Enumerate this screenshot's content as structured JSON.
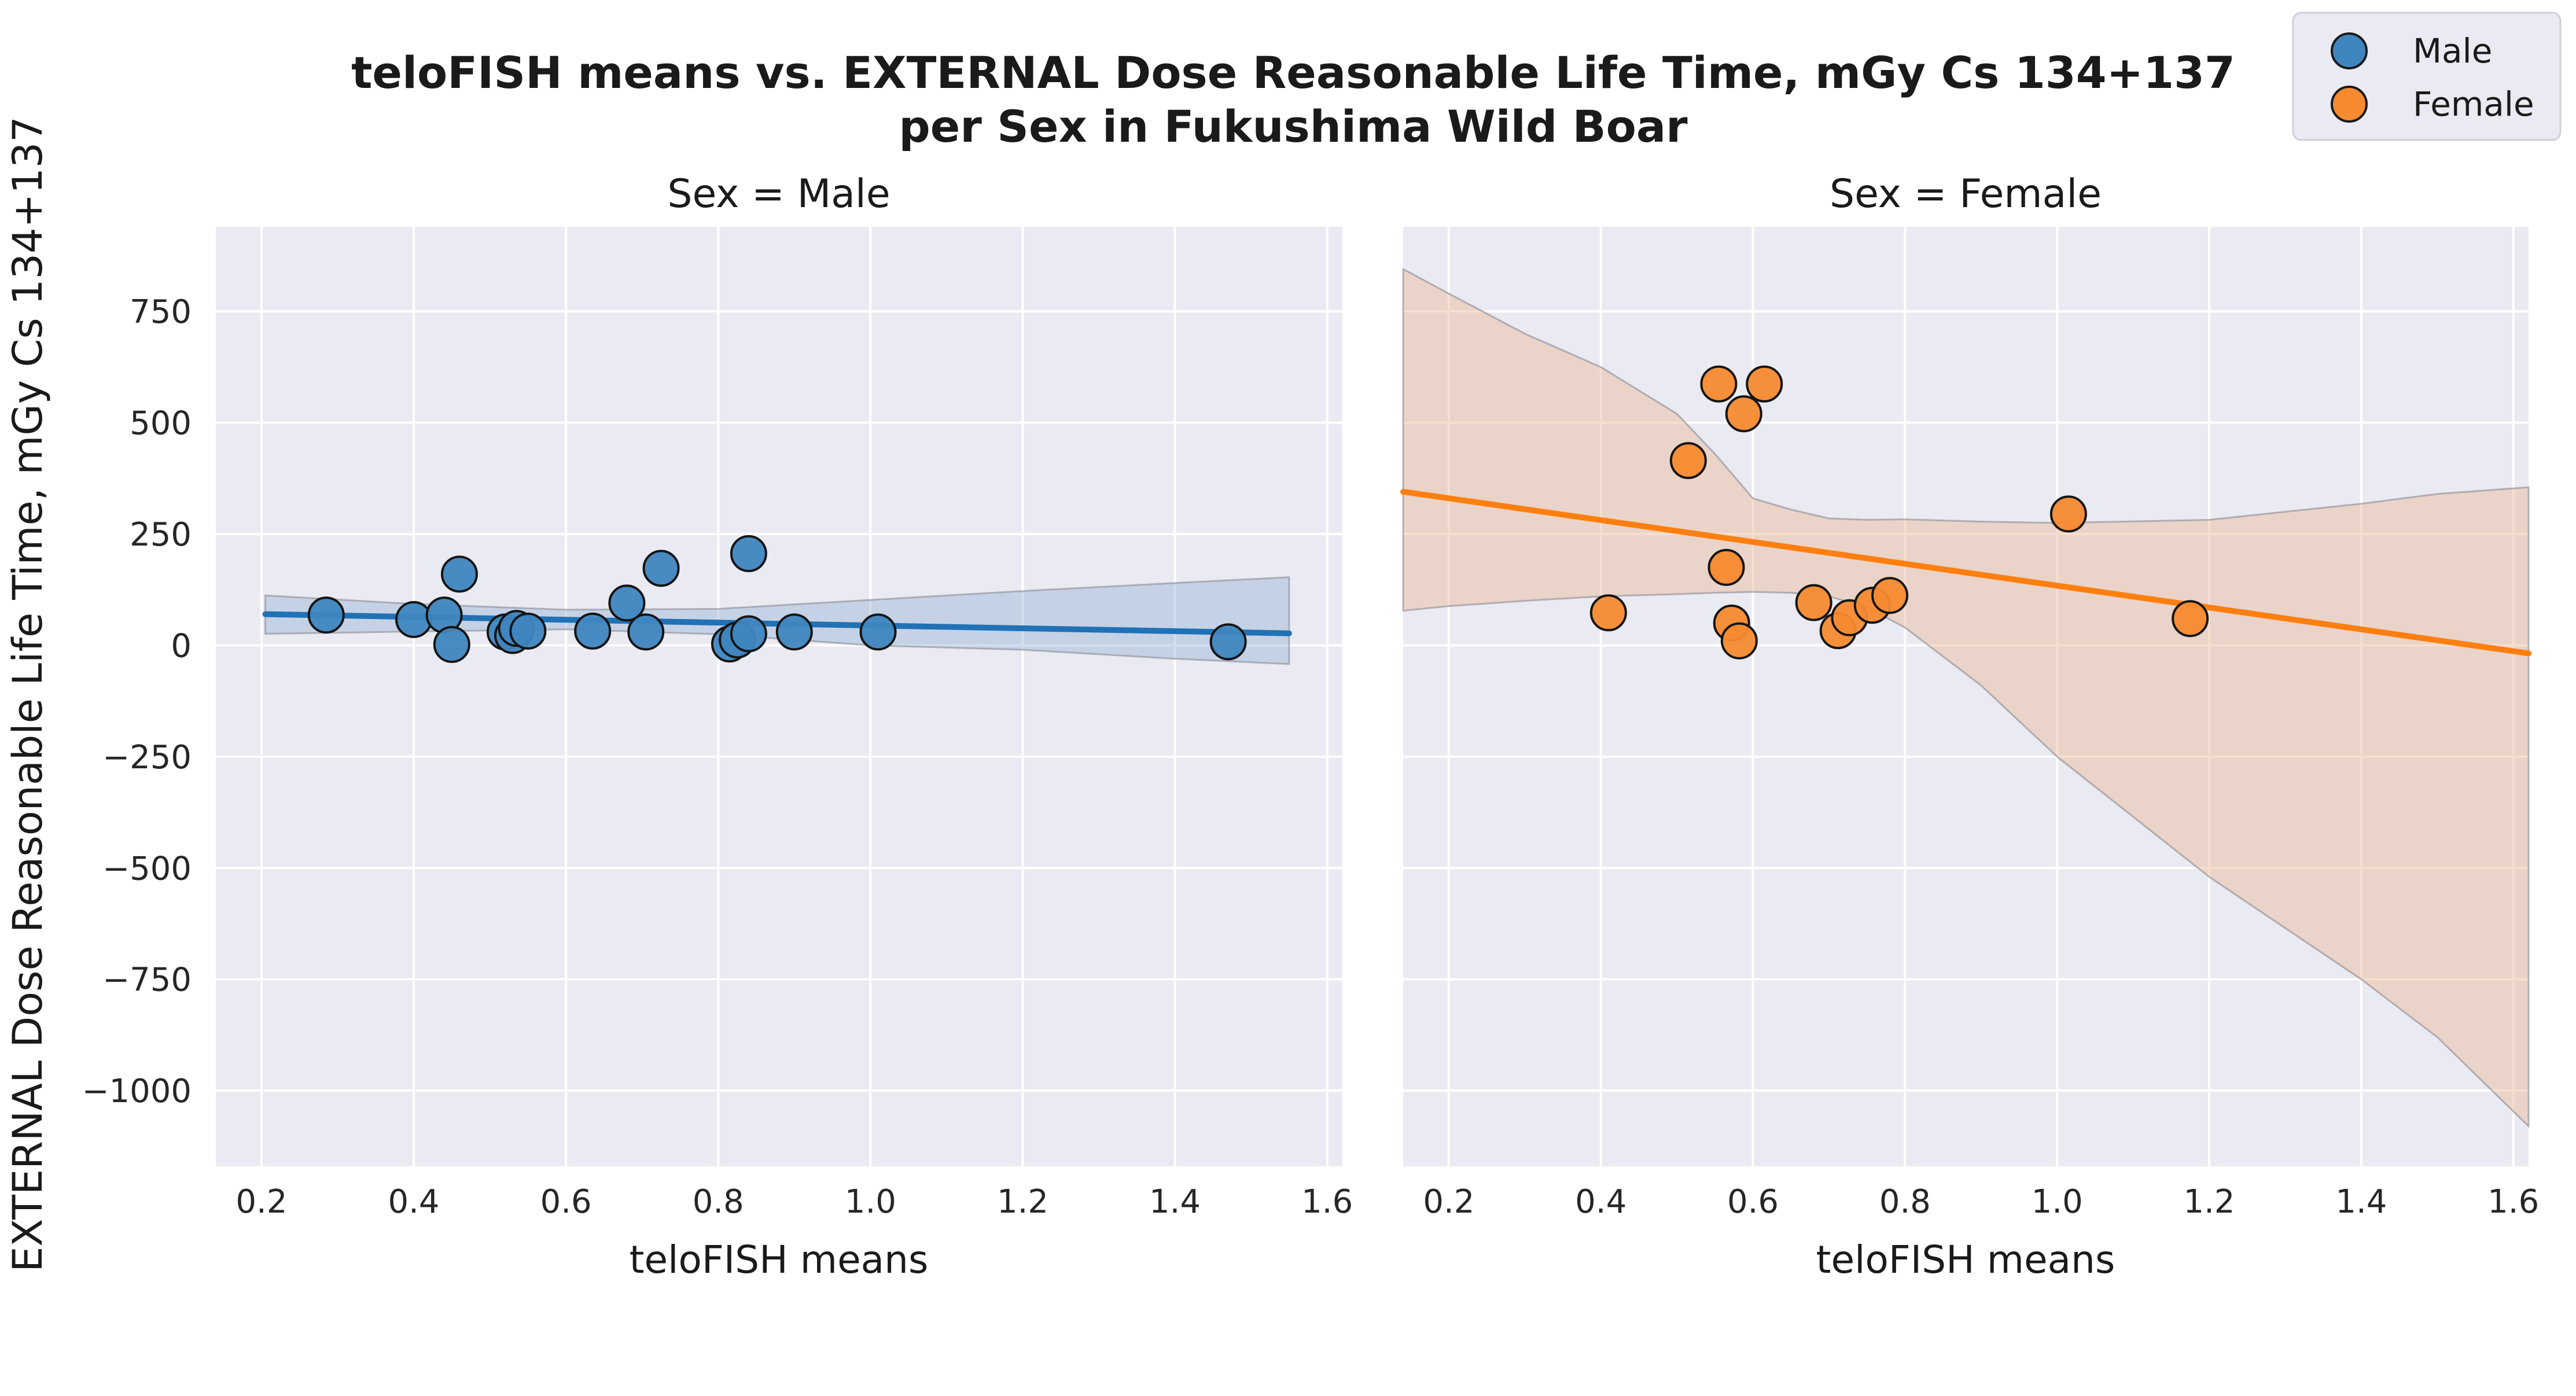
{
  "chart_data": {
    "type": "scatter",
    "title": [
      "teloFISH means vs. EXTERNAL Dose Reasonable Life Time, mGy Cs 134+137",
      "per Sex in Fukushima Wild Boar"
    ],
    "ylabel": "EXTERNAL Dose Reasonable Life Time, mGy Cs 134+137",
    "xlim": [
      0.14,
      1.62
    ],
    "ylim": [
      -1170,
      940
    ],
    "x_ticks": [
      0.2,
      0.4,
      0.6,
      0.8,
      1.0,
      1.2,
      1.4,
      1.6
    ],
    "y_ticks": [
      750,
      500,
      250,
      0,
      -250,
      -500,
      -750,
      -1000
    ],
    "x_tick_labels": [
      "0.2",
      "0.4",
      "0.6",
      "0.8",
      "1.0",
      "1.2",
      "1.4",
      "1.6"
    ],
    "y_tick_labels": [
      "750",
      "500",
      "250",
      "0",
      "−250",
      "−500",
      "−750",
      "−1000"
    ],
    "grid": true,
    "legend": {
      "placement": "top-right",
      "entries": [
        {
          "label": "Male",
          "color": "#3f86c0"
        },
        {
          "label": "Female",
          "color": "#f58a2f"
        }
      ]
    },
    "panels": [
      {
        "title": "Sex = Male",
        "xlabel": "teloFISH means",
        "series_name": "Male",
        "point_color": "#3f86c0",
        "line_color": "#2171b5",
        "band_color": "#9ab6d6",
        "points": [
          {
            "x": 0.285,
            "y": 68
          },
          {
            "x": 0.4,
            "y": 58
          },
          {
            "x": 0.44,
            "y": 68
          },
          {
            "x": 0.46,
            "y": 160
          },
          {
            "x": 0.45,
            "y": 2
          },
          {
            "x": 0.52,
            "y": 30
          },
          {
            "x": 0.53,
            "y": 22
          },
          {
            "x": 0.535,
            "y": 38
          },
          {
            "x": 0.55,
            "y": 32
          },
          {
            "x": 0.635,
            "y": 32
          },
          {
            "x": 0.68,
            "y": 95
          },
          {
            "x": 0.705,
            "y": 30
          },
          {
            "x": 0.725,
            "y": 173
          },
          {
            "x": 0.815,
            "y": 3
          },
          {
            "x": 0.825,
            "y": 12
          },
          {
            "x": 0.84,
            "y": 26
          },
          {
            "x": 0.84,
            "y": 206
          },
          {
            "x": 0.9,
            "y": 30
          },
          {
            "x": 1.01,
            "y": 30
          },
          {
            "x": 1.47,
            "y": 8
          }
        ],
        "fit": {
          "x": [
            0.205,
            1.55
          ],
          "y": [
            70,
            27
          ]
        },
        "band": {
          "x": [
            0.205,
            0.4,
            0.6,
            0.8,
            1.0,
            1.2,
            1.4,
            1.55
          ],
          "upper": [
            112,
            93,
            80,
            82,
            102,
            122,
            140,
            153
          ],
          "lower": [
            26,
            31,
            36,
            25,
            0,
            -10,
            -30,
            -42
          ]
        }
      },
      {
        "title": "Sex = Female",
        "xlabel": "teloFISH means",
        "series_name": "Female",
        "point_color": "#f58a2f",
        "line_color": "#ff7f0e",
        "band_color": "#eab895",
        "points": [
          {
            "x": 0.41,
            "y": 73
          },
          {
            "x": 0.515,
            "y": 415
          },
          {
            "x": 0.555,
            "y": 587
          },
          {
            "x": 0.565,
            "y": 175
          },
          {
            "x": 0.572,
            "y": 50
          },
          {
            "x": 0.582,
            "y": 10
          },
          {
            "x": 0.588,
            "y": 520
          },
          {
            "x": 0.615,
            "y": 587
          },
          {
            "x": 0.68,
            "y": 96
          },
          {
            "x": 0.712,
            "y": 33
          },
          {
            "x": 0.727,
            "y": 62
          },
          {
            "x": 0.757,
            "y": 90
          },
          {
            "x": 0.78,
            "y": 112
          },
          {
            "x": 1.015,
            "y": 295
          },
          {
            "x": 1.175,
            "y": 60
          }
        ],
        "fit": {
          "x": [
            0.14,
            1.62
          ],
          "y": [
            345,
            -18
          ]
        },
        "band": {
          "x": [
            0.14,
            0.2,
            0.3,
            0.4,
            0.5,
            0.55,
            0.6,
            0.65,
            0.7,
            0.75,
            0.8,
            0.9,
            1.0,
            1.2,
            1.4,
            1.5,
            1.62
          ],
          "upper": [
            845,
            790,
            700,
            625,
            520,
            430,
            330,
            305,
            285,
            282,
            283,
            278,
            275,
            282,
            318,
            340,
            355
          ],
          "lower": [
            78,
            88,
            100,
            110,
            115,
            118,
            120,
            118,
            110,
            85,
            40,
            -90,
            -250,
            -520,
            -750,
            -880,
            -1080
          ]
        }
      }
    ]
  }
}
